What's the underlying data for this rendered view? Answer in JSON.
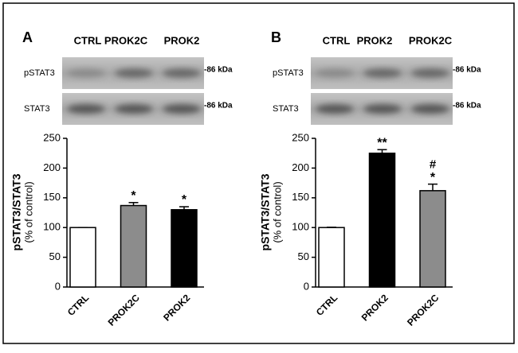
{
  "chart_data": [
    {
      "type": "bar",
      "panel": "A",
      "blot": {
        "columns": [
          "CTRL",
          "PROK2C",
          "PROK2"
        ],
        "rows": [
          "pSTAT3",
          "STAT3"
        ],
        "marker": "-86 kDa"
      },
      "ylabel": "pSTAT3/STAT3",
      "ylabel_sub": "(% of control)",
      "categories": [
        "CTRL",
        "PROK2C",
        "PROK2"
      ],
      "values": [
        100,
        137,
        130
      ],
      "errors": [
        0,
        5,
        5
      ],
      "colors": [
        "#ffffff",
        "#8c8c8c",
        "#000000"
      ],
      "annotations": [
        null,
        "*",
        "*"
      ],
      "annotations_top": [
        null,
        null,
        null
      ],
      "ylim": [
        0,
        250
      ],
      "yticks": [
        0,
        50,
        100,
        150,
        200,
        250
      ]
    },
    {
      "type": "bar",
      "panel": "B",
      "blot": {
        "columns": [
          "CTRL",
          "PROK2",
          "PROK2C"
        ],
        "rows": [
          "pSTAT3",
          "STAT3"
        ],
        "marker": "-86 kDa"
      },
      "ylabel": "pSTAT3/STAT3",
      "ylabel_sub": "(% of control)",
      "categories": [
        "CTRL",
        "PROK2",
        "PROK2C"
      ],
      "values": [
        100,
        225,
        162
      ],
      "errors": [
        0.5,
        6,
        11
      ],
      "colors": [
        "#ffffff",
        "#000000",
        "#8c8c8c"
      ],
      "annotations": [
        null,
        "**",
        "*"
      ],
      "annotations_top": [
        null,
        null,
        "#"
      ],
      "ylim": [
        0,
        250
      ],
      "yticks": [
        0,
        50,
        100,
        150,
        200,
        250
      ]
    }
  ]
}
